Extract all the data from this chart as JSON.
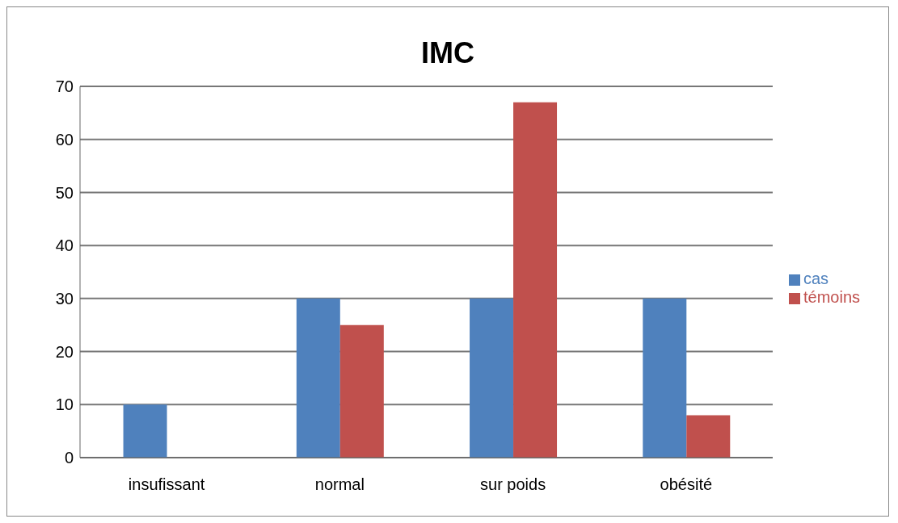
{
  "chart_data": {
    "type": "bar",
    "title": "IMC",
    "categories": [
      "insufissant",
      "normal",
      "sur poids",
      "obésité"
    ],
    "series": [
      {
        "name": "cas",
        "color": "#4f81bd",
        "values": [
          10,
          30,
          30,
          30
        ]
      },
      {
        "name": "témoins",
        "color": "#c0504d",
        "values": [
          0,
          25,
          67,
          8
        ]
      }
    ],
    "ylim": [
      0,
      70
    ],
    "yticks": [
      0,
      10,
      20,
      30,
      40,
      50,
      60,
      70
    ],
    "grid": "y",
    "legend": "right"
  }
}
